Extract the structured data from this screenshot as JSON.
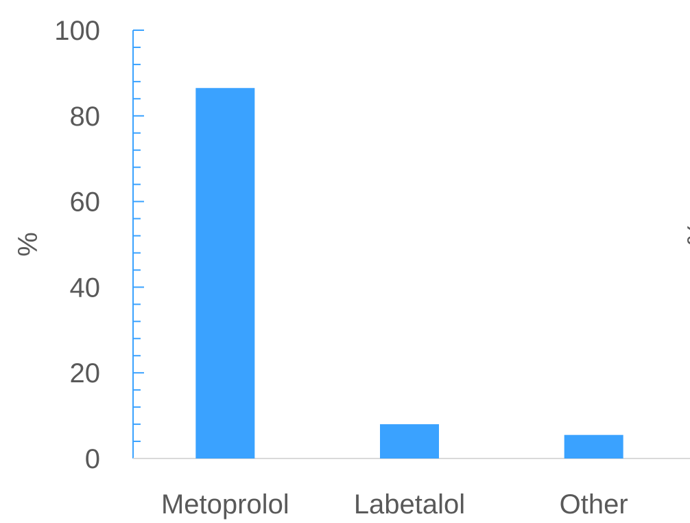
{
  "chart_data": {
    "type": "bar",
    "title": "",
    "xlabel": "",
    "ylabel": "%",
    "ylim": [
      0,
      100
    ],
    "yticks": [
      0,
      20,
      40,
      60,
      80,
      100
    ],
    "categories": [
      "Metoprolol",
      "Labetalol",
      "Other"
    ],
    "values": [
      86.5,
      8,
      5.5
    ],
    "grid": false,
    "legend": "none",
    "colors": {
      "bar": "#3aa2ff",
      "axis": "#3aa2ff",
      "baseline": "#d9d9d9",
      "text": "#595959"
    },
    "second_axis_ylabel": "%"
  }
}
